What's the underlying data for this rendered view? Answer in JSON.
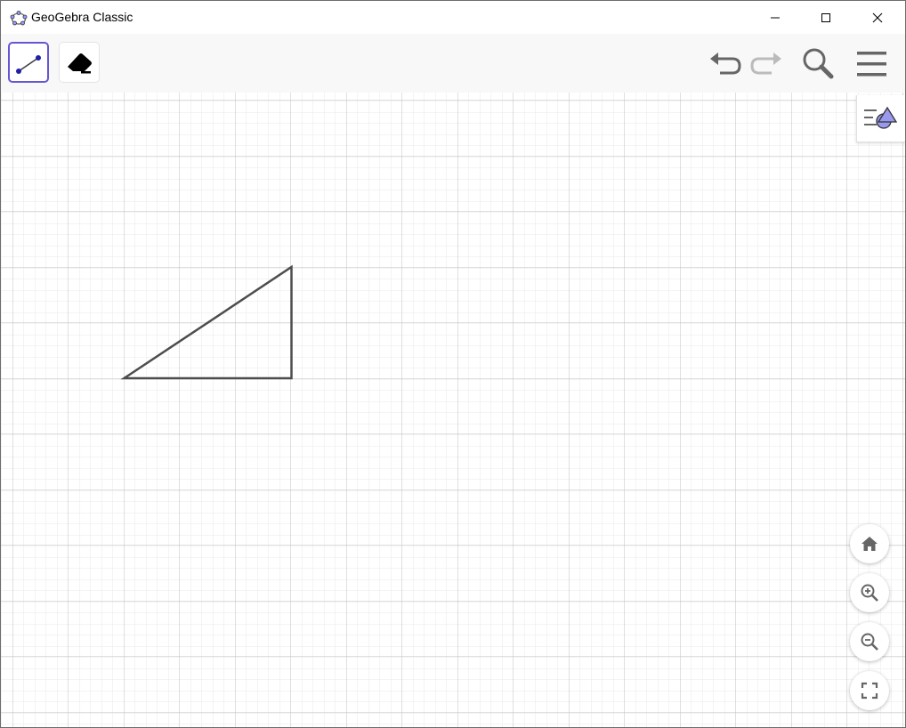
{
  "window": {
    "title": "GeoGebra Classic",
    "controls": [
      "minimize-icon",
      "maximize-icon",
      "close-icon"
    ]
  },
  "toolbar": {
    "tools": [
      {
        "name": "segment-tool",
        "icon": "segment-icon",
        "selected": true
      },
      {
        "name": "eraser-tool",
        "icon": "eraser-icon",
        "selected": false
      }
    ],
    "actions": [
      {
        "name": "undo",
        "icon": "undo-icon",
        "enabled": true
      },
      {
        "name": "redo",
        "icon": "redo-icon",
        "enabled": false
      },
      {
        "name": "search",
        "icon": "search-icon"
      },
      {
        "name": "menu",
        "icon": "hamburger-menu-icon"
      }
    ]
  },
  "graphics_view": {
    "style_bar_toggle": "style-bar-icon",
    "grid": {
      "major": true,
      "minor": true
    },
    "shapes": [
      {
        "type": "triangle",
        "name": "right-triangle",
        "legs": "horizontal 3, vertical 2 major grid units",
        "stroke": "#4d4d4d"
      }
    ],
    "nav_buttons": [
      {
        "name": "home",
        "icon": "home-icon"
      },
      {
        "name": "zoom-in",
        "icon": "zoom-in-icon"
      },
      {
        "name": "zoom-out",
        "icon": "zoom-out-icon"
      },
      {
        "name": "fullscreen",
        "icon": "fullscreen-icon"
      }
    ]
  },
  "colors": {
    "accent": "#6557d2",
    "icon_gray": "#666666",
    "icon_disabled": "#bbbbbb",
    "grid_major": "#c0c0c0",
    "grid_minor": "#eaeaea",
    "shape_stroke": "#4d4d4d"
  }
}
